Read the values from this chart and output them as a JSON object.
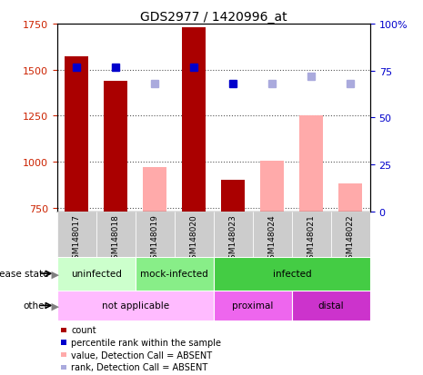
{
  "title": "GDS2977 / 1420996_at",
  "samples": [
    "GSM148017",
    "GSM148018",
    "GSM148019",
    "GSM148020",
    "GSM148023",
    "GSM148024",
    "GSM148021",
    "GSM148022"
  ],
  "count_values": [
    1570,
    1440,
    null,
    1730,
    900,
    null,
    null,
    null
  ],
  "absent_value_bars": [
    null,
    null,
    970,
    null,
    null,
    1005,
    1250,
    880
  ],
  "percentile_rank": [
    77,
    77,
    null,
    77,
    68,
    null,
    null,
    null
  ],
  "absent_rank": [
    null,
    null,
    68,
    null,
    null,
    68,
    72,
    68
  ],
  "ylim_left": [
    730,
    1750
  ],
  "ylim_right": [
    0,
    100
  ],
  "yticks_left": [
    750,
    1000,
    1250,
    1500,
    1750
  ],
  "yticks_right": [
    0,
    25,
    50,
    75,
    100
  ],
  "disease_groups": [
    {
      "label": "uninfected",
      "indices": [
        0,
        1
      ],
      "color": "#ccffcc"
    },
    {
      "label": "mock-infected",
      "indices": [
        2,
        3
      ],
      "color": "#88ee88"
    },
    {
      "label": "infected",
      "indices": [
        4,
        5,
        6,
        7
      ],
      "color": "#44cc44"
    }
  ],
  "other_groups": [
    {
      "label": "not applicable",
      "indices": [
        0,
        1,
        2,
        3
      ],
      "color": "#ffbbff"
    },
    {
      "label": "proximal",
      "indices": [
        4,
        5
      ],
      "color": "#ee66ee"
    },
    {
      "label": "distal",
      "indices": [
        6,
        7
      ],
      "color": "#cc33cc"
    }
  ],
  "colors": {
    "count_bar": "#aa0000",
    "absent_bar": "#ffaaaa",
    "percentile_dot": "#0000cc",
    "absent_rank_dot": "#aaaadd",
    "axis_left_color": "#cc2200",
    "axis_right_color": "#0000cc",
    "sample_bg": "#cccccc",
    "grid_color": "#555555",
    "border": "#000000"
  },
  "legend_items": [
    {
      "label": "count",
      "color": "#aa0000"
    },
    {
      "label": "percentile rank within the sample",
      "color": "#0000cc"
    },
    {
      "label": "value, Detection Call = ABSENT",
      "color": "#ffaaaa"
    },
    {
      "label": "rank, Detection Call = ABSENT",
      "color": "#aaaadd"
    }
  ]
}
